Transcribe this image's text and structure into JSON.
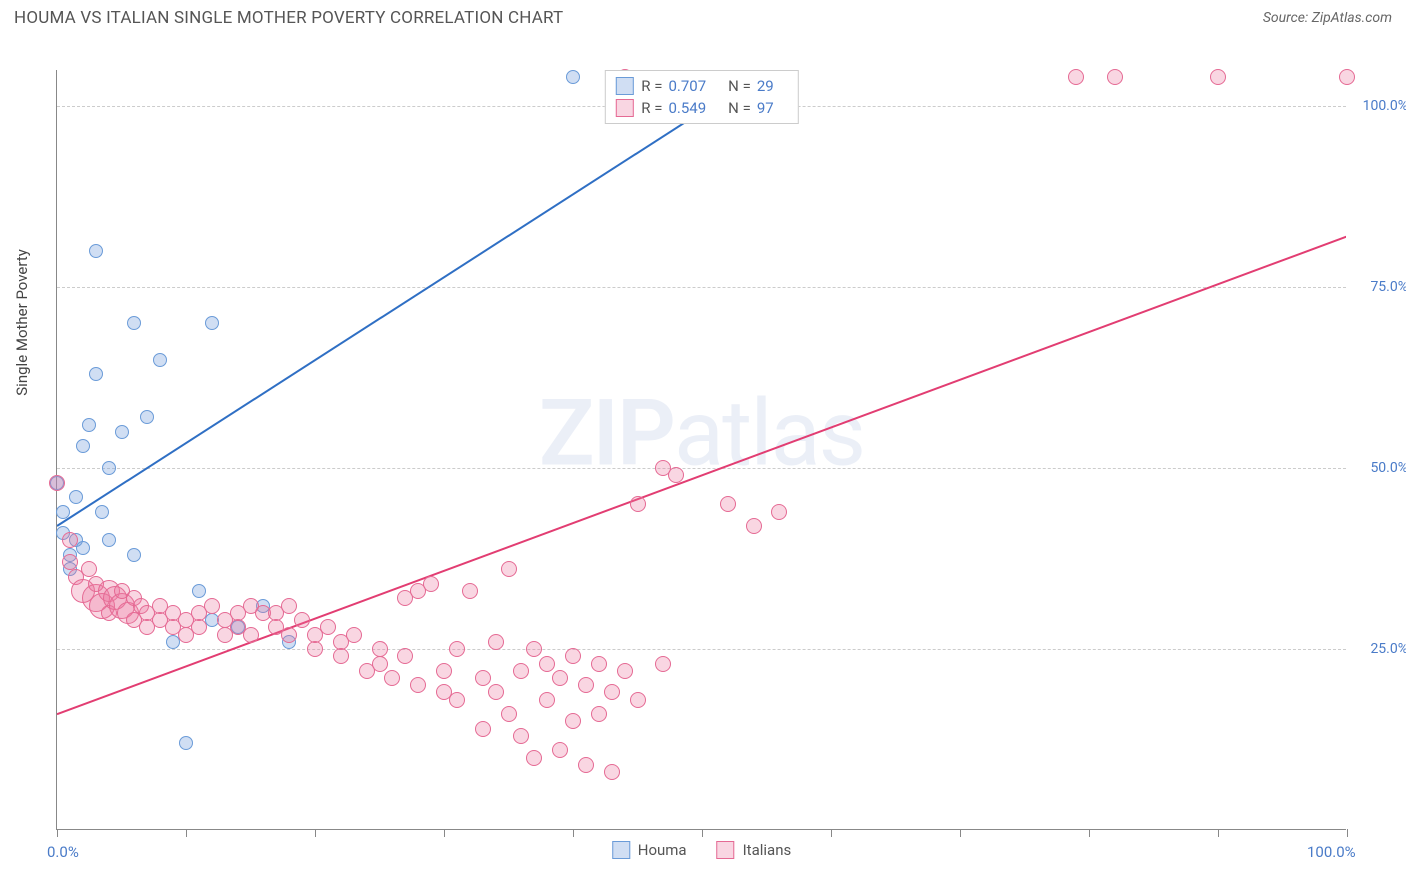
{
  "header": {
    "title": "HOUMA VS ITALIAN SINGLE MOTHER POVERTY CORRELATION CHART",
    "source_label": "Source:",
    "source_name": "ZipAtlas.com"
  },
  "chart": {
    "type": "scatter",
    "y_axis_title": "Single Mother Poverty",
    "xlim": [
      0,
      100
    ],
    "ylim": [
      0,
      105
    ],
    "x_ticks": [
      0,
      10,
      20,
      30,
      40,
      50,
      60,
      70,
      80,
      90,
      100
    ],
    "x_tick_labels": {
      "0": "0.0%",
      "100": "100.0%"
    },
    "y_gridlines": [
      25,
      50,
      75,
      100
    ],
    "y_tick_labels": {
      "25": "25.0%",
      "50": "50.0%",
      "75": "75.0%",
      "100": "100.0%"
    },
    "background_color": "#ffffff",
    "grid_color": "#cccccc",
    "axis_color": "#888888",
    "tick_label_color": "#4a7bc8",
    "watermark_text_bold": "ZIP",
    "watermark_text_rest": "atlas",
    "series": [
      {
        "name": "Houma",
        "color_fill": "rgba(120,160,220,0.35)",
        "color_stroke": "#6a9bd8",
        "marker_radius_base": 7,
        "R": "0.707",
        "N": "29",
        "trend": {
          "x1": 0,
          "y1": 42,
          "x2": 55,
          "y2": 105,
          "color": "#2f6fc4",
          "width": 2
        },
        "points": [
          {
            "x": 0,
            "y": 48
          },
          {
            "x": 0.5,
            "y": 44
          },
          {
            "x": 0.5,
            "y": 41
          },
          {
            "x": 1,
            "y": 38
          },
          {
            "x": 1,
            "y": 36
          },
          {
            "x": 1.5,
            "y": 40
          },
          {
            "x": 1.5,
            "y": 46
          },
          {
            "x": 2,
            "y": 53
          },
          {
            "x": 2,
            "y": 39
          },
          {
            "x": 2.5,
            "y": 56
          },
          {
            "x": 3,
            "y": 80
          },
          {
            "x": 3,
            "y": 63
          },
          {
            "x": 3.5,
            "y": 44
          },
          {
            "x": 4,
            "y": 50
          },
          {
            "x": 4,
            "y": 40
          },
          {
            "x": 5,
            "y": 55
          },
          {
            "x": 6,
            "y": 70
          },
          {
            "x": 6,
            "y": 38
          },
          {
            "x": 7,
            "y": 57
          },
          {
            "x": 8,
            "y": 65
          },
          {
            "x": 9,
            "y": 26
          },
          {
            "x": 10,
            "y": 12
          },
          {
            "x": 11,
            "y": 33
          },
          {
            "x": 12,
            "y": 70
          },
          {
            "x": 12,
            "y": 29
          },
          {
            "x": 14,
            "y": 28
          },
          {
            "x": 16,
            "y": 31
          },
          {
            "x": 18,
            "y": 26
          },
          {
            "x": 40,
            "y": 104
          }
        ]
      },
      {
        "name": "Italians",
        "color_fill": "rgba(235,120,160,0.30)",
        "color_stroke": "#e56a94",
        "marker_radius_base": 8,
        "R": "0.549",
        "N": "97",
        "trend": {
          "x1": 0,
          "y1": 16,
          "x2": 100,
          "y2": 82,
          "color": "#e23d72",
          "width": 2
        },
        "points": [
          {
            "x": 0,
            "y": 48
          },
          {
            "x": 1,
            "y": 40
          },
          {
            "x": 1,
            "y": 37
          },
          {
            "x": 1.5,
            "y": 35
          },
          {
            "x": 2,
            "y": 33,
            "r": 12
          },
          {
            "x": 2.5,
            "y": 36
          },
          {
            "x": 3,
            "y": 32,
            "r": 14
          },
          {
            "x": 3,
            "y": 34
          },
          {
            "x": 3.5,
            "y": 31,
            "r": 13
          },
          {
            "x": 4,
            "y": 33,
            "r": 11
          },
          {
            "x": 4,
            "y": 30
          },
          {
            "x": 4.5,
            "y": 32,
            "r": 12
          },
          {
            "x": 5,
            "y": 31,
            "r": 13
          },
          {
            "x": 5,
            "y": 33
          },
          {
            "x": 5.5,
            "y": 30,
            "r": 11
          },
          {
            "x": 6,
            "y": 32
          },
          {
            "x": 6,
            "y": 29
          },
          {
            "x": 6.5,
            "y": 31
          },
          {
            "x": 7,
            "y": 30
          },
          {
            "x": 7,
            "y": 28
          },
          {
            "x": 8,
            "y": 29
          },
          {
            "x": 8,
            "y": 31
          },
          {
            "x": 9,
            "y": 28
          },
          {
            "x": 9,
            "y": 30
          },
          {
            "x": 10,
            "y": 29
          },
          {
            "x": 10,
            "y": 27
          },
          {
            "x": 11,
            "y": 28
          },
          {
            "x": 11,
            "y": 30
          },
          {
            "x": 12,
            "y": 31
          },
          {
            "x": 13,
            "y": 27
          },
          {
            "x": 13,
            "y": 29
          },
          {
            "x": 14,
            "y": 28
          },
          {
            "x": 14,
            "y": 30
          },
          {
            "x": 15,
            "y": 31
          },
          {
            "x": 15,
            "y": 27
          },
          {
            "x": 16,
            "y": 30
          },
          {
            "x": 17,
            "y": 30
          },
          {
            "x": 17,
            "y": 28
          },
          {
            "x": 18,
            "y": 27
          },
          {
            "x": 18,
            "y": 31
          },
          {
            "x": 19,
            "y": 29
          },
          {
            "x": 20,
            "y": 25
          },
          {
            "x": 20,
            "y": 27
          },
          {
            "x": 21,
            "y": 28
          },
          {
            "x": 22,
            "y": 26
          },
          {
            "x": 22,
            "y": 24
          },
          {
            "x": 23,
            "y": 27
          },
          {
            "x": 24,
            "y": 22
          },
          {
            "x": 25,
            "y": 25
          },
          {
            "x": 25,
            "y": 23
          },
          {
            "x": 26,
            "y": 21
          },
          {
            "x": 27,
            "y": 32
          },
          {
            "x": 27,
            "y": 24
          },
          {
            "x": 28,
            "y": 20
          },
          {
            "x": 28,
            "y": 33
          },
          {
            "x": 29,
            "y": 34
          },
          {
            "x": 30,
            "y": 19
          },
          {
            "x": 30,
            "y": 22
          },
          {
            "x": 31,
            "y": 25
          },
          {
            "x": 31,
            "y": 18
          },
          {
            "x": 32,
            "y": 33
          },
          {
            "x": 33,
            "y": 21
          },
          {
            "x": 33,
            "y": 14
          },
          {
            "x": 34,
            "y": 26
          },
          {
            "x": 34,
            "y": 19
          },
          {
            "x": 35,
            "y": 36
          },
          {
            "x": 35,
            "y": 16
          },
          {
            "x": 36,
            "y": 22
          },
          {
            "x": 36,
            "y": 13
          },
          {
            "x": 37,
            "y": 25
          },
          {
            "x": 37,
            "y": 10
          },
          {
            "x": 38,
            "y": 18
          },
          {
            "x": 38,
            "y": 23
          },
          {
            "x": 39,
            "y": 11
          },
          {
            "x": 39,
            "y": 21
          },
          {
            "x": 40,
            "y": 24
          },
          {
            "x": 40,
            "y": 15
          },
          {
            "x": 41,
            "y": 20
          },
          {
            "x": 41,
            "y": 9
          },
          {
            "x": 42,
            "y": 23
          },
          {
            "x": 42,
            "y": 16
          },
          {
            "x": 43,
            "y": 19
          },
          {
            "x": 43,
            "y": 8
          },
          {
            "x": 44,
            "y": 22
          },
          {
            "x": 45,
            "y": 45
          },
          {
            "x": 45,
            "y": 18
          },
          {
            "x": 47,
            "y": 50
          },
          {
            "x": 47,
            "y": 23
          },
          {
            "x": 48,
            "y": 49
          },
          {
            "x": 52,
            "y": 45
          },
          {
            "x": 54,
            "y": 42
          },
          {
            "x": 56,
            "y": 44
          },
          {
            "x": 79,
            "y": 104
          },
          {
            "x": 82,
            "y": 104
          },
          {
            "x": 90,
            "y": 104
          },
          {
            "x": 100,
            "y": 104
          },
          {
            "x": 44,
            "y": 104
          }
        ]
      }
    ],
    "legend_bottom": [
      {
        "swatch_fill": "rgba(120,160,220,0.35)",
        "swatch_stroke": "#6a9bd8",
        "label": "Houma"
      },
      {
        "swatch_fill": "rgba(235,120,160,0.30)",
        "swatch_stroke": "#e56a94",
        "label": "Italians"
      }
    ]
  }
}
